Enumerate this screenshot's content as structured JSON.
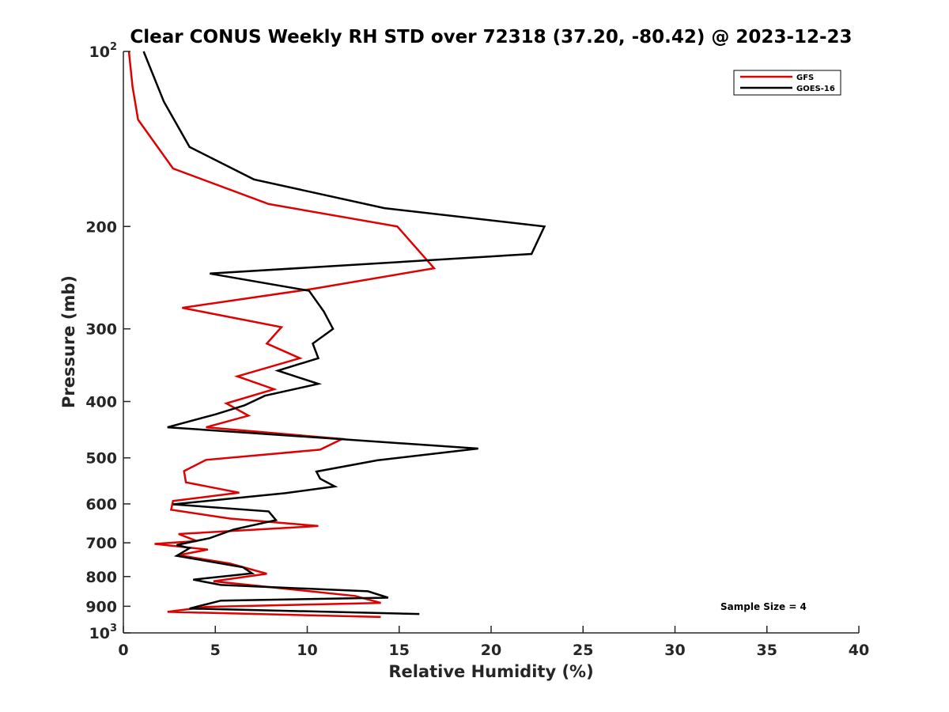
{
  "chart_data": {
    "type": "line",
    "title": "Clear CONUS Weekly RH STD over 72318 (37.20, -80.42) @ 2023-12-23",
    "xlabel": "Relative Humidity (%)",
    "ylabel": "Pressure (mb)",
    "xlim": [
      0,
      40
    ],
    "ylim": [
      100,
      1000
    ],
    "yscale": "log",
    "y_reversed": true,
    "x_ticks": [
      "0",
      "5",
      "10",
      "15",
      "20",
      "25",
      "30",
      "35",
      "40"
    ],
    "y_ticks": [
      {
        "value": 100,
        "base": "10",
        "exp": "2"
      },
      {
        "value": 200,
        "label": "200"
      },
      {
        "value": 300,
        "label": "300"
      },
      {
        "value": 400,
        "label": "400"
      },
      {
        "value": 500,
        "label": "500"
      },
      {
        "value": 600,
        "label": "600"
      },
      {
        "value": 700,
        "label": "700"
      },
      {
        "value": 800,
        "label": "800"
      },
      {
        "value": 900,
        "label": "900"
      },
      {
        "value": 1000,
        "base": "10",
        "exp": "3"
      }
    ],
    "grid": false,
    "legend_position": "top-right",
    "annotation": "Sample Size = 4",
    "series": [
      {
        "name": "GFS",
        "color": "#e00000",
        "points": [
          [
            0.3,
            100
          ],
          [
            0.5,
            115
          ],
          [
            0.8,
            131
          ],
          [
            2.7,
            159
          ],
          [
            7.9,
            183
          ],
          [
            14.9,
            200
          ],
          [
            16.9,
            236
          ],
          [
            10.3,
            256
          ],
          [
            3.2,
            276
          ],
          [
            8.6,
            298
          ],
          [
            7.8,
            318
          ],
          [
            9.6,
            337
          ],
          [
            6.2,
            362
          ],
          [
            8.2,
            381
          ],
          [
            5.6,
            403
          ],
          [
            6.8,
            423
          ],
          [
            4.5,
            443
          ],
          [
            11.9,
            464
          ],
          [
            10.7,
            484
          ],
          [
            4.5,
            504
          ],
          [
            3.3,
            527
          ],
          [
            3.4,
            551
          ],
          [
            6.3,
            574
          ],
          [
            2.7,
            593
          ],
          [
            2.6,
            614
          ],
          [
            5.8,
            636
          ],
          [
            10.6,
            655
          ],
          [
            3.0,
            676
          ],
          [
            4.0,
            695
          ],
          [
            1.7,
            703
          ],
          [
            4.6,
            719
          ],
          [
            3.0,
            735
          ],
          [
            5.8,
            760
          ],
          [
            7.8,
            791
          ],
          [
            4.9,
            815
          ],
          [
            12.6,
            864
          ],
          [
            14.0,
            888
          ],
          [
            4.5,
            902
          ],
          [
            2.4,
            920
          ],
          [
            14.0,
            939
          ]
        ]
      },
      {
        "name": "GOES-16",
        "color": "#000000",
        "points": [
          [
            1.1,
            100
          ],
          [
            2.2,
            122
          ],
          [
            3.6,
            146
          ],
          [
            7.1,
            166
          ],
          [
            14.2,
            186
          ],
          [
            22.9,
            200
          ],
          [
            22.2,
            223
          ],
          [
            4.7,
            241
          ],
          [
            10.1,
            258
          ],
          [
            10.9,
            280
          ],
          [
            11.4,
            300
          ],
          [
            10.3,
            318
          ],
          [
            10.6,
            337
          ],
          [
            8.4,
            354
          ],
          [
            10.6,
            373
          ],
          [
            7.7,
            391
          ],
          [
            6.6,
            406
          ],
          [
            5.0,
            421
          ],
          [
            2.4,
            443
          ],
          [
            19.3,
            482
          ],
          [
            13.8,
            505
          ],
          [
            10.5,
            528
          ],
          [
            10.7,
            543
          ],
          [
            11.5,
            560
          ],
          [
            8.8,
            575
          ],
          [
            2.7,
            601
          ],
          [
            7.9,
            618
          ],
          [
            8.3,
            640
          ],
          [
            6.0,
            664
          ],
          [
            4.7,
            687
          ],
          [
            2.9,
            706
          ],
          [
            3.6,
            715
          ],
          [
            2.9,
            737
          ],
          [
            6.5,
            771
          ],
          [
            7.0,
            790
          ],
          [
            3.8,
            810
          ],
          [
            5.3,
            827
          ],
          [
            13.3,
            848
          ],
          [
            14.4,
            870
          ],
          [
            5.3,
            880
          ],
          [
            3.6,
            908
          ],
          [
            16.1,
            928
          ]
        ]
      }
    ]
  }
}
